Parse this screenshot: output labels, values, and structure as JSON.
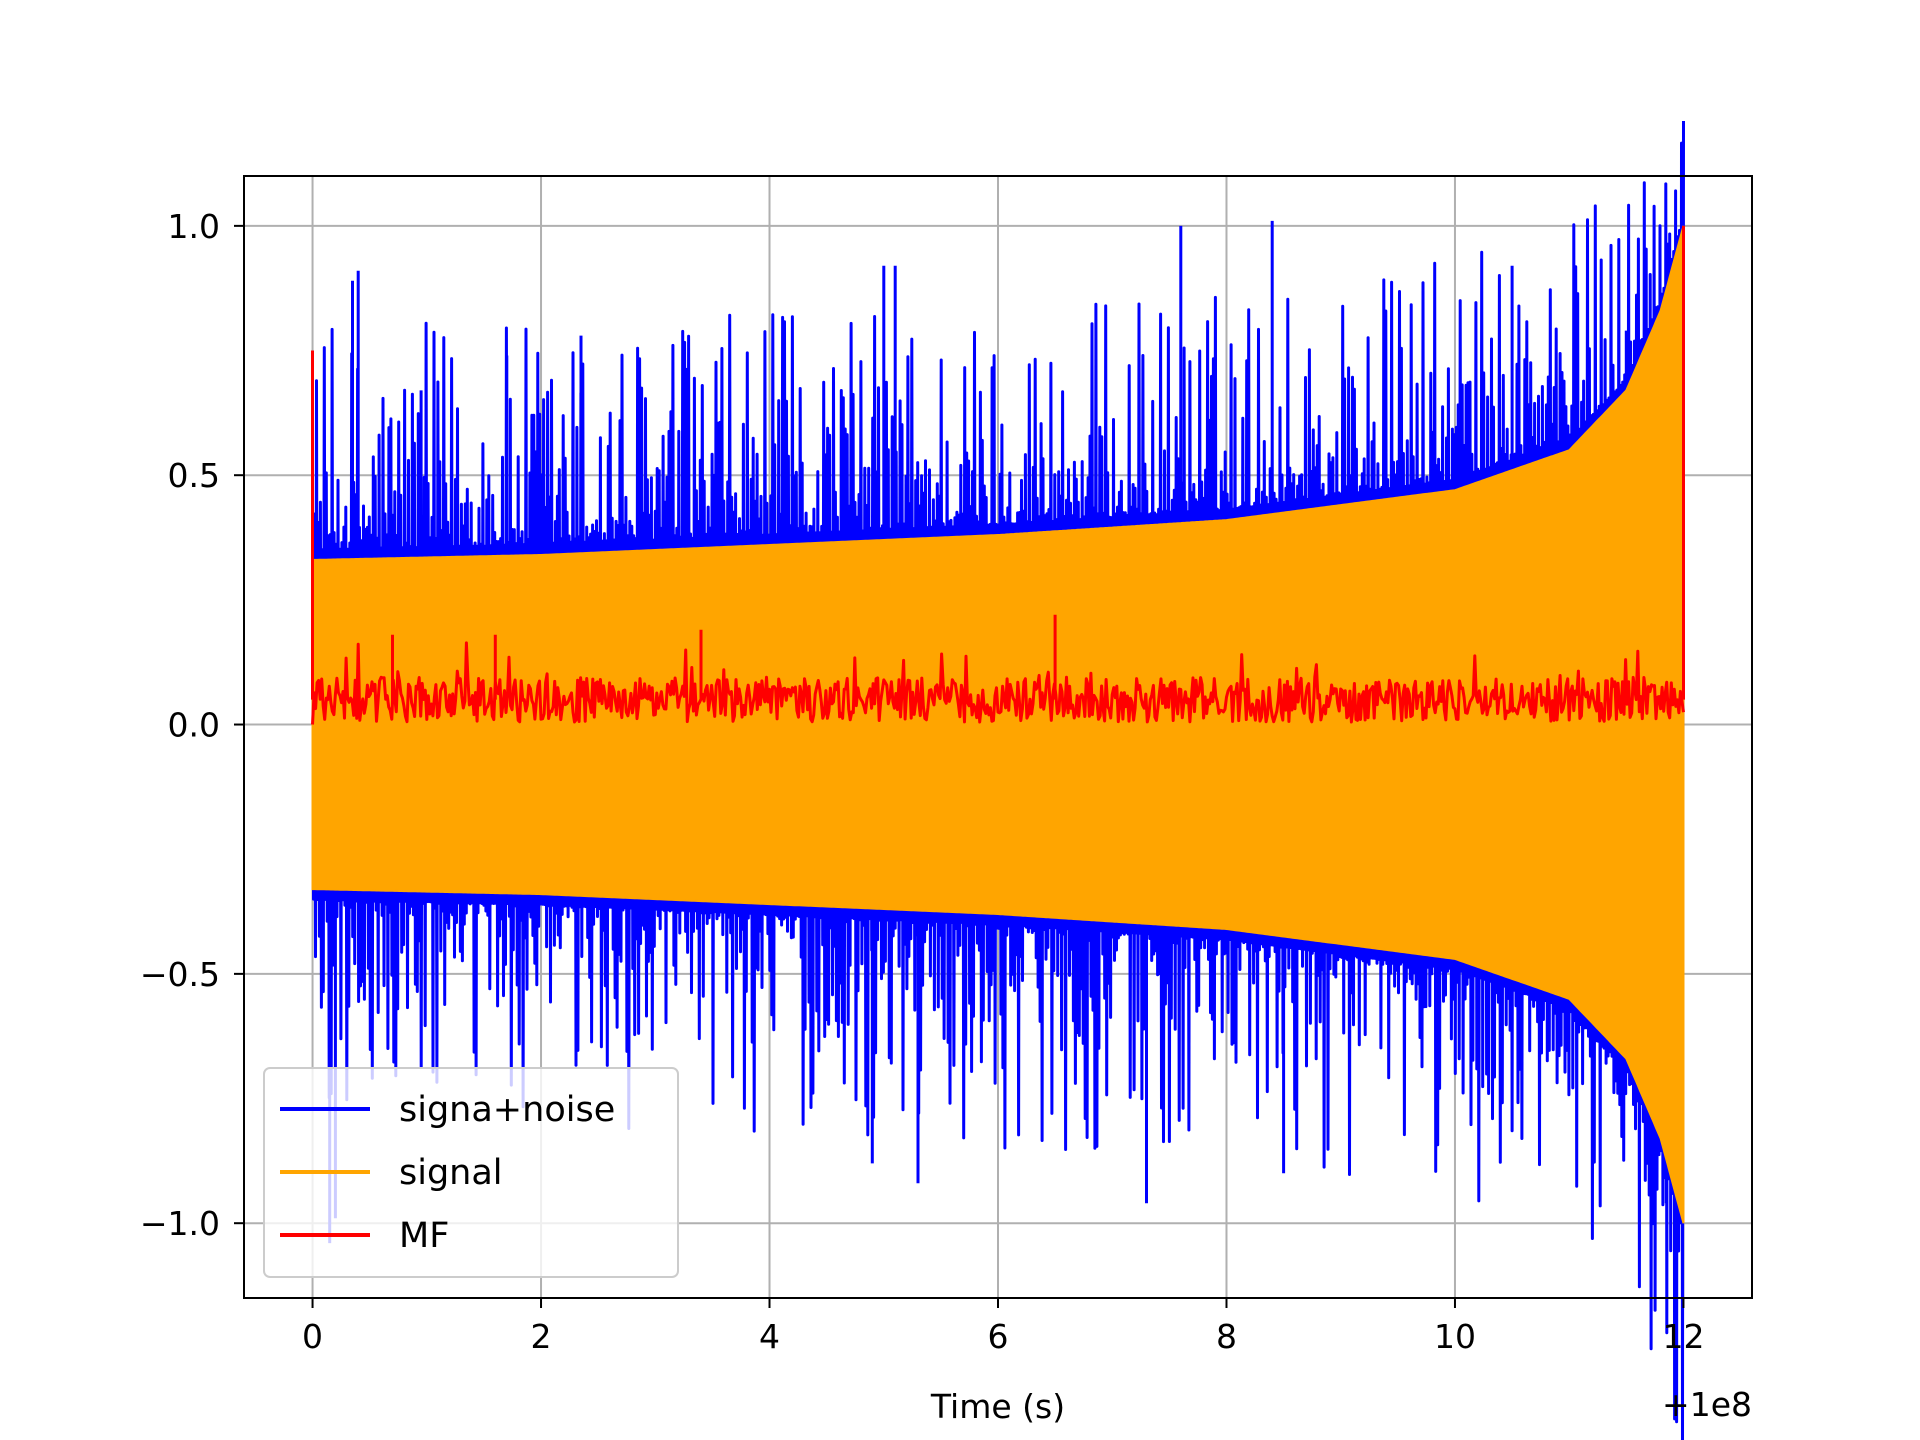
{
  "chart_data": {
    "type": "line",
    "title": "",
    "xlabel": "Time (s)",
    "ylabel": "",
    "x_offset_label": "+1e8",
    "xlim": [
      -0.6,
      12.6
    ],
    "ylim": [
      -1.15,
      1.1
    ],
    "x_ticks": [
      0,
      2,
      4,
      6,
      8,
      10,
      12
    ],
    "x_tick_labels": [
      "0",
      "2",
      "4",
      "6",
      "8",
      "10",
      "12"
    ],
    "y_ticks": [
      1.0,
      0.5,
      0.0,
      -0.5,
      -1.0
    ],
    "y_tick_labels": [
      "1.0",
      "0.5",
      "0.0",
      "−0.5",
      "−1.0"
    ],
    "grid": true,
    "legend_position": "lower-left",
    "colors": {
      "signal_noise": "#0000ff",
      "signal": "#ffa500",
      "mf": "#ff0000",
      "grid": "#b0b0b0",
      "legend_border": "#cccccc"
    },
    "series": [
      {
        "name": "signa+noise",
        "color": "#0000ff",
        "description_points": {
          "x_range": [
            0,
            12
          ],
          "upper_peaks": [
            {
              "x": 0.4,
              "y": 0.91
            },
            {
              "x": 0.35,
              "y": 0.89
            },
            {
              "x": 0.95,
              "y": 0.67
            },
            {
              "x": 1.7,
              "y": 0.74
            },
            {
              "x": 2.35,
              "y": 0.78
            },
            {
              "x": 5.0,
              "y": 0.92
            },
            {
              "x": 5.1,
              "y": 0.92
            },
            {
              "x": 7.6,
              "y": 1.0
            },
            {
              "x": 8.4,
              "y": 1.01
            },
            {
              "x": 10.5,
              "y": 0.92
            },
            {
              "x": 11.5,
              "y": 0.79
            }
          ],
          "lower_troughs": [
            {
              "x": 0.15,
              "y": -1.04
            },
            {
              "x": 0.2,
              "y": -0.99
            },
            {
              "x": 5.3,
              "y": -0.92
            },
            {
              "x": 4.9,
              "y": -0.88
            },
            {
              "x": 7.3,
              "y": -0.96
            },
            {
              "x": 8.5,
              "y": -0.9
            },
            {
              "x": 11.85,
              "y": -0.96
            }
          ]
        }
      },
      {
        "name": "signal",
        "color": "#ffa500",
        "envelope": [
          {
            "x": 0.0,
            "y": 0.33
          },
          {
            "x": 2.0,
            "y": 0.34
          },
          {
            "x": 4.0,
            "y": 0.36
          },
          {
            "x": 6.0,
            "y": 0.38
          },
          {
            "x": 8.0,
            "y": 0.41
          },
          {
            "x": 10.0,
            "y": 0.47
          },
          {
            "x": 11.0,
            "y": 0.55
          },
          {
            "x": 11.5,
            "y": 0.67
          },
          {
            "x": 11.8,
            "y": 0.83
          },
          {
            "x": 12.0,
            "y": 1.0
          }
        ]
      },
      {
        "name": "MF",
        "color": "#ff0000",
        "baseline": 0.05,
        "points": [
          {
            "x": 0.0,
            "y": 0.75
          },
          {
            "x": 0.7,
            "y": 0.18
          },
          {
            "x": 1.6,
            "y": 0.18
          },
          {
            "x": 3.4,
            "y": 0.19
          },
          {
            "x": 6.5,
            "y": 0.22
          },
          {
            "x": 12.0,
            "y": 1.0
          }
        ]
      }
    ]
  }
}
